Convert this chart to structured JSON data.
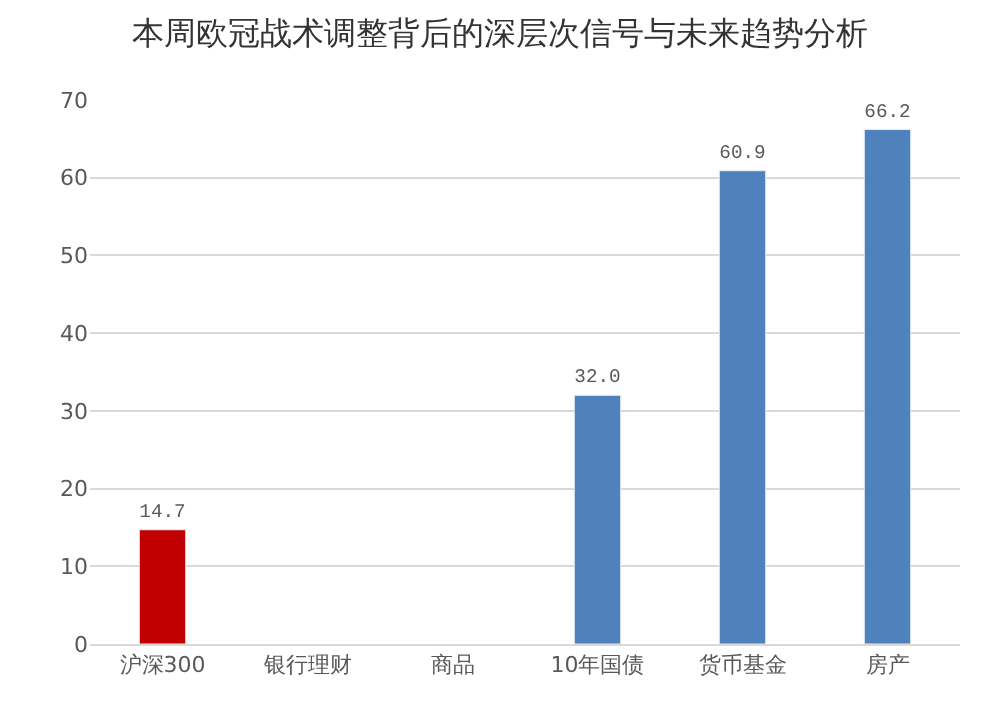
{
  "chart_data": {
    "type": "bar",
    "title": "本周欧冠战术调整背后的深层次信号与未来趋势分析",
    "categories": [
      "沪深300",
      "银行理财",
      "商品",
      "10年国债",
      "货币基金",
      "房产"
    ],
    "values": [
      14.7,
      null,
      null,
      32.0,
      60.9,
      66.2
    ],
    "colors": [
      "#c00000",
      "#4f81bd",
      "#4f81bd",
      "#4f81bd",
      "#4f81bd",
      "#4f81bd"
    ],
    "value_labels": [
      "14.7",
      null,
      null,
      "32.0",
      "60.9",
      "66.2"
    ],
    "ylim": [
      0,
      70
    ],
    "yticks": [
      0,
      10,
      20,
      30,
      40,
      50,
      60,
      70
    ],
    "grid": "y",
    "legend": false
  }
}
